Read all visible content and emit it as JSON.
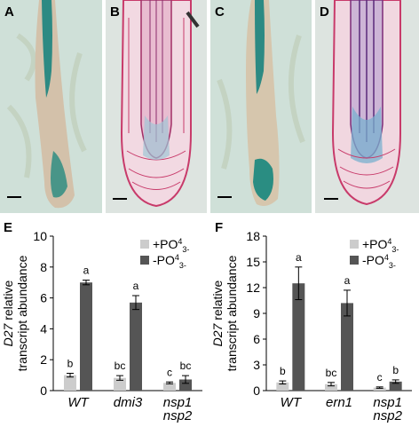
{
  "panels": {
    "A": {
      "label": "A"
    },
    "B": {
      "label": "B"
    },
    "C": {
      "label": "C"
    },
    "D": {
      "label": "D"
    }
  },
  "chart_data": [
    {
      "panel": "E",
      "type": "bar",
      "categories": [
        [
          "WT"
        ],
        [
          "dmi3"
        ],
        [
          "nsp1",
          "nsp2"
        ]
      ],
      "series": [
        {
          "name": "+PO43-",
          "color": "#cccccc",
          "values": [
            1.0,
            0.82,
            0.5
          ],
          "errors": [
            0.12,
            0.15,
            0.06
          ],
          "letters": [
            "b",
            "bc",
            "c"
          ]
        },
        {
          "name": "-PO43-",
          "color": "#555555",
          "values": [
            7.0,
            5.7,
            0.72
          ],
          "errors": [
            0.15,
            0.45,
            0.25
          ],
          "letters": [
            "a",
            "a",
            "bc"
          ]
        }
      ],
      "ylabel_lines": [
        "D27 relative",
        "transcript abundance"
      ],
      "ylabel_italic": "D27",
      "ylim": [
        0,
        10
      ],
      "yticks": [
        0,
        2,
        4,
        6,
        8,
        10
      ],
      "legend": "top-right"
    },
    {
      "panel": "F",
      "type": "bar",
      "categories": [
        [
          "WT"
        ],
        [
          "ern1"
        ],
        [
          "nsp1",
          "nsp2"
        ]
      ],
      "series": [
        {
          "name": "+PO43-",
          "color": "#cccccc",
          "values": [
            0.95,
            0.75,
            0.35
          ],
          "errors": [
            0.18,
            0.2,
            0.08
          ],
          "letters": [
            "b",
            "bc",
            "c"
          ]
        },
        {
          "name": "-PO43-",
          "color": "#555555",
          "values": [
            12.5,
            10.2,
            1.05
          ],
          "errors": [
            1.9,
            1.5,
            0.2
          ],
          "letters": [
            "a",
            "a",
            "b"
          ]
        }
      ],
      "ylabel_lines": [
        "D27 relative",
        "transcript abundance"
      ],
      "ylabel_italic": "D27",
      "ylim": [
        0,
        18
      ],
      "yticks": [
        0,
        3,
        6,
        9,
        12,
        15,
        18
      ],
      "legend": "top-right"
    }
  ]
}
